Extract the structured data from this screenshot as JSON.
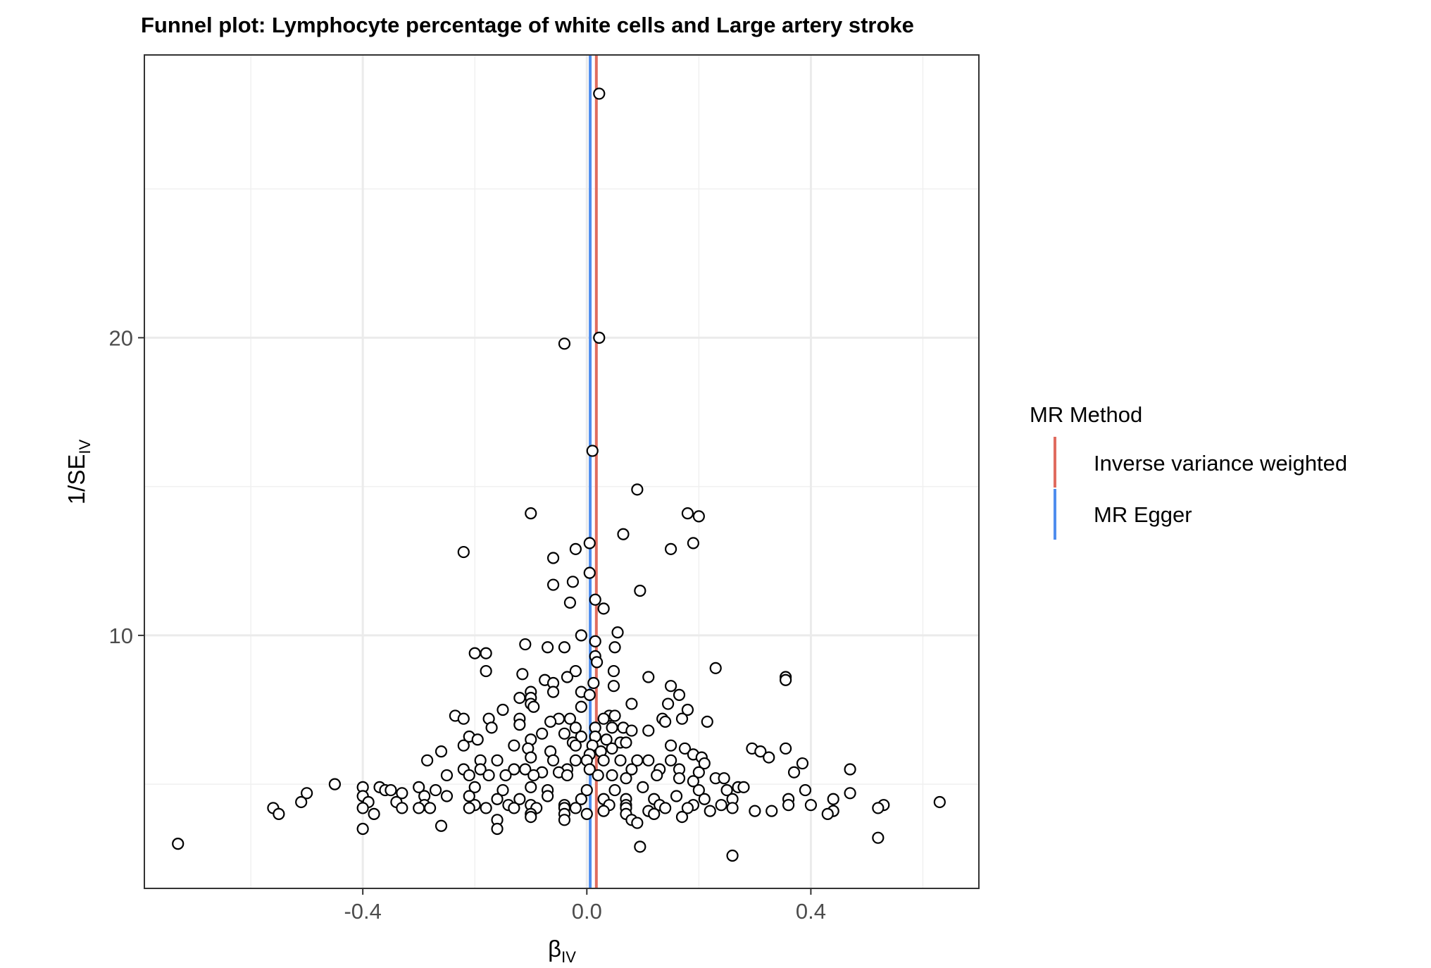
{
  "chart_data": {
    "type": "scatter",
    "title": "Funnel plot: Lymphocyte percentage of white cells and Large artery stroke",
    "xlabel": {
      "main": "β",
      "sub": "IV"
    },
    "ylabel": {
      "main": "1/SE",
      "sub": "IV"
    },
    "xlim": [
      -0.79,
      0.7
    ],
    "ylim": [
      1.5,
      29.5
    ],
    "x_ticks": [
      -0.4,
      0.0,
      0.4
    ],
    "x_tick_labels": [
      "-0.4",
      "0.0",
      "0.4"
    ],
    "y_ticks": [
      10,
      20
    ],
    "y_tick_labels": [
      "10",
      "20"
    ],
    "grid": true,
    "legend": {
      "title": "MR Method",
      "position": "right",
      "entries": [
        {
          "label": "Inverse variance weighted",
          "color": "#E06C5F"
        },
        {
          "label": "MR Egger",
          "color": "#4F8DEE"
        }
      ]
    },
    "lines": [
      {
        "name": "Inverse variance weighted",
        "x": 0.017,
        "color": "#E06C5F"
      },
      {
        "name": "MR Egger",
        "x": 0.006,
        "color": "#4F8DEE"
      }
    ],
    "points": [
      [
        0.022,
        28.2
      ],
      [
        0.022,
        20.0
      ],
      [
        -0.04,
        19.8
      ],
      [
        0.01,
        16.2
      ],
      [
        0.09,
        14.9
      ],
      [
        -0.1,
        14.1
      ],
      [
        0.18,
        14.1
      ],
      [
        0.2,
        14.0
      ],
      [
        0.065,
        13.4
      ],
      [
        0.005,
        13.1
      ],
      [
        -0.02,
        12.9
      ],
      [
        0.15,
        12.9
      ],
      [
        0.19,
        13.1
      ],
      [
        -0.22,
        12.8
      ],
      [
        -0.06,
        12.6
      ],
      [
        0.005,
        12.1
      ],
      [
        -0.06,
        11.7
      ],
      [
        -0.025,
        11.8
      ],
      [
        0.095,
        11.5
      ],
      [
        0.015,
        11.2
      ],
      [
        -0.03,
        11.1
      ],
      [
        0.03,
        10.9
      ],
      [
        0.055,
        10.1
      ],
      [
        -0.01,
        10.0
      ],
      [
        0.015,
        9.8
      ],
      [
        -0.11,
        9.7
      ],
      [
        -0.07,
        9.6
      ],
      [
        -0.04,
        9.6
      ],
      [
        0.05,
        9.6
      ],
      [
        -0.2,
        9.4
      ],
      [
        -0.18,
        9.4
      ],
      [
        0.015,
        9.3
      ],
      [
        0.018,
        9.1
      ],
      [
        0.23,
        8.9
      ],
      [
        -0.02,
        8.8
      ],
      [
        0.048,
        8.8
      ],
      [
        -0.18,
        8.8
      ],
      [
        -0.115,
        8.7
      ],
      [
        0.11,
        8.6
      ],
      [
        0.355,
        8.6
      ],
      [
        0.355,
        8.5
      ],
      [
        -0.035,
        8.6
      ],
      [
        -0.075,
        8.5
      ],
      [
        0.012,
        8.4
      ],
      [
        -0.06,
        8.4
      ],
      [
        0.048,
        8.3
      ],
      [
        0.15,
        8.3
      ],
      [
        0.165,
        8.0
      ],
      [
        -0.1,
        8.1
      ],
      [
        -0.06,
        8.1
      ],
      [
        -0.01,
        8.1
      ],
      [
        0.005,
        8.0
      ],
      [
        -0.1,
        7.9
      ],
      [
        -0.12,
        7.9
      ],
      [
        0.08,
        7.7
      ],
      [
        0.145,
        7.7
      ],
      [
        -0.1,
        7.7
      ],
      [
        -0.095,
        7.6
      ],
      [
        -0.15,
        7.5
      ],
      [
        -0.01,
        7.6
      ],
      [
        0.18,
        7.5
      ],
      [
        -0.235,
        7.3
      ],
      [
        -0.22,
        7.2
      ],
      [
        -0.175,
        7.2
      ],
      [
        -0.12,
        7.2
      ],
      [
        -0.05,
        7.2
      ],
      [
        -0.03,
        7.2
      ],
      [
        0.04,
        7.3
      ],
      [
        0.05,
        7.3
      ],
      [
        0.03,
        7.2
      ],
      [
        0.135,
        7.2
      ],
      [
        0.14,
        7.1
      ],
      [
        0.17,
        7.2
      ],
      [
        0.215,
        7.1
      ],
      [
        -0.065,
        7.1
      ],
      [
        -0.12,
        7.0
      ],
      [
        -0.17,
        6.9
      ],
      [
        0.015,
        6.9
      ],
      [
        0.045,
        6.9
      ],
      [
        0.065,
        6.9
      ],
      [
        -0.02,
        6.9
      ],
      [
        0.11,
        6.8
      ],
      [
        0.08,
        6.8
      ],
      [
        -0.08,
        6.7
      ],
      [
        -0.04,
        6.7
      ],
      [
        -0.01,
        6.6
      ],
      [
        0.015,
        6.6
      ],
      [
        -0.21,
        6.6
      ],
      [
        -0.195,
        6.5
      ],
      [
        -0.1,
        6.5
      ],
      [
        0.035,
        6.5
      ],
      [
        0.06,
        6.4
      ],
      [
        0.07,
        6.4
      ],
      [
        -0.025,
        6.4
      ],
      [
        -0.02,
        6.3
      ],
      [
        0.01,
        6.3
      ],
      [
        -0.22,
        6.3
      ],
      [
        -0.13,
        6.3
      ],
      [
        0.15,
        6.3
      ],
      [
        -0.105,
        6.2
      ],
      [
        0.045,
        6.2
      ],
      [
        0.175,
        6.2
      ],
      [
        0.295,
        6.2
      ],
      [
        0.355,
        6.2
      ],
      [
        -0.26,
        6.1
      ],
      [
        -0.065,
        6.1
      ],
      [
        0.005,
        6.0
      ],
      [
        0.025,
        6.1
      ],
      [
        0.31,
        6.1
      ],
      [
        0.19,
        6.0
      ],
      [
        0.205,
        5.9
      ],
      [
        0.325,
        5.9
      ],
      [
        -0.1,
        5.9
      ],
      [
        0.09,
        5.8
      ],
      [
        0.11,
        5.8
      ],
      [
        -0.285,
        5.8
      ],
      [
        -0.19,
        5.8
      ],
      [
        -0.16,
        5.8
      ],
      [
        -0.06,
        5.8
      ],
      [
        -0.02,
        5.8
      ],
      [
        0.0,
        5.8
      ],
      [
        0.03,
        5.8
      ],
      [
        0.06,
        5.8
      ],
      [
        0.15,
        5.8
      ],
      [
        0.21,
        5.7
      ],
      [
        0.385,
        5.7
      ],
      [
        0.47,
        5.5
      ],
      [
        0.37,
        5.4
      ],
      [
        -0.22,
        5.5
      ],
      [
        -0.19,
        5.5
      ],
      [
        -0.13,
        5.5
      ],
      [
        -0.11,
        5.5
      ],
      [
        -0.035,
        5.5
      ],
      [
        0.005,
        5.5
      ],
      [
        0.08,
        5.5
      ],
      [
        0.13,
        5.5
      ],
      [
        0.165,
        5.5
      ],
      [
        0.2,
        5.4
      ],
      [
        -0.08,
        5.4
      ],
      [
        -0.05,
        5.4
      ],
      [
        -0.25,
        5.3
      ],
      [
        -0.21,
        5.3
      ],
      [
        -0.175,
        5.3
      ],
      [
        -0.145,
        5.3
      ],
      [
        -0.095,
        5.3
      ],
      [
        -0.035,
        5.3
      ],
      [
        0.02,
        5.3
      ],
      [
        0.045,
        5.3
      ],
      [
        0.07,
        5.2
      ],
      [
        0.125,
        5.3
      ],
      [
        0.165,
        5.2
      ],
      [
        0.23,
        5.2
      ],
      [
        0.245,
        5.2
      ],
      [
        0.19,
        5.1
      ],
      [
        -0.45,
        5.0
      ],
      [
        -0.4,
        4.9
      ],
      [
        -0.37,
        4.9
      ],
      [
        -0.36,
        4.8
      ],
      [
        -0.35,
        4.8
      ],
      [
        -0.3,
        4.9
      ],
      [
        -0.27,
        4.8
      ],
      [
        -0.2,
        4.9
      ],
      [
        -0.15,
        4.8
      ],
      [
        -0.1,
        4.9
      ],
      [
        -0.07,
        4.8
      ],
      [
        0.0,
        4.8
      ],
      [
        0.05,
        4.8
      ],
      [
        0.1,
        4.9
      ],
      [
        0.2,
        4.8
      ],
      [
        0.25,
        4.8
      ],
      [
        0.27,
        4.9
      ],
      [
        0.28,
        4.9
      ],
      [
        0.39,
        4.8
      ],
      [
        0.47,
        4.7
      ],
      [
        -0.5,
        4.7
      ],
      [
        -0.4,
        4.6
      ],
      [
        -0.33,
        4.7
      ],
      [
        -0.29,
        4.6
      ],
      [
        -0.25,
        4.6
      ],
      [
        -0.21,
        4.6
      ],
      [
        -0.16,
        4.5
      ],
      [
        -0.12,
        4.5
      ],
      [
        -0.07,
        4.6
      ],
      [
        -0.01,
        4.5
      ],
      [
        0.03,
        4.5
      ],
      [
        0.07,
        4.5
      ],
      [
        0.12,
        4.5
      ],
      [
        0.16,
        4.6
      ],
      [
        0.21,
        4.5
      ],
      [
        0.26,
        4.5
      ],
      [
        0.36,
        4.5
      ],
      [
        0.44,
        4.5
      ],
      [
        -0.51,
        4.4
      ],
      [
        -0.39,
        4.4
      ],
      [
        -0.34,
        4.4
      ],
      [
        -0.29,
        4.3
      ],
      [
        -0.2,
        4.3
      ],
      [
        -0.14,
        4.3
      ],
      [
        -0.1,
        4.3
      ],
      [
        -0.04,
        4.3
      ],
      [
        0.04,
        4.3
      ],
      [
        0.07,
        4.3
      ],
      [
        0.13,
        4.3
      ],
      [
        0.19,
        4.3
      ],
      [
        0.24,
        4.3
      ],
      [
        0.36,
        4.3
      ],
      [
        0.4,
        4.3
      ],
      [
        0.53,
        4.3
      ],
      [
        0.63,
        4.4
      ],
      [
        -0.56,
        4.2
      ],
      [
        -0.4,
        4.2
      ],
      [
        -0.33,
        4.2
      ],
      [
        -0.3,
        4.2
      ],
      [
        -0.28,
        4.2
      ],
      [
        -0.21,
        4.2
      ],
      [
        -0.18,
        4.2
      ],
      [
        -0.13,
        4.2
      ],
      [
        -0.09,
        4.2
      ],
      [
        -0.04,
        4.2
      ],
      [
        -0.02,
        4.2
      ],
      [
        0.03,
        4.1
      ],
      [
        0.07,
        4.2
      ],
      [
        0.11,
        4.1
      ],
      [
        0.14,
        4.2
      ],
      [
        0.18,
        4.2
      ],
      [
        0.22,
        4.1
      ],
      [
        0.26,
        4.2
      ],
      [
        0.3,
        4.1
      ],
      [
        0.33,
        4.1
      ],
      [
        0.44,
        4.1
      ],
      [
        0.52,
        4.2
      ],
      [
        -0.55,
        4.0
      ],
      [
        -0.38,
        4.0
      ],
      [
        -0.1,
        4.0
      ],
      [
        -0.04,
        4.0
      ],
      [
        0.0,
        4.0
      ],
      [
        0.07,
        4.0
      ],
      [
        0.12,
        4.0
      ],
      [
        0.43,
        4.0
      ],
      [
        -0.16,
        3.8
      ],
      [
        -0.1,
        3.9
      ],
      [
        -0.04,
        3.8
      ],
      [
        0.08,
        3.8
      ],
      [
        0.09,
        3.7
      ],
      [
        0.17,
        3.9
      ],
      [
        -0.26,
        3.6
      ],
      [
        -0.16,
        3.5
      ],
      [
        -0.4,
        3.5
      ],
      [
        0.52,
        3.2
      ],
      [
        -0.73,
        3.0
      ],
      [
        0.095,
        2.9
      ],
      [
        0.26,
        2.6
      ]
    ]
  }
}
